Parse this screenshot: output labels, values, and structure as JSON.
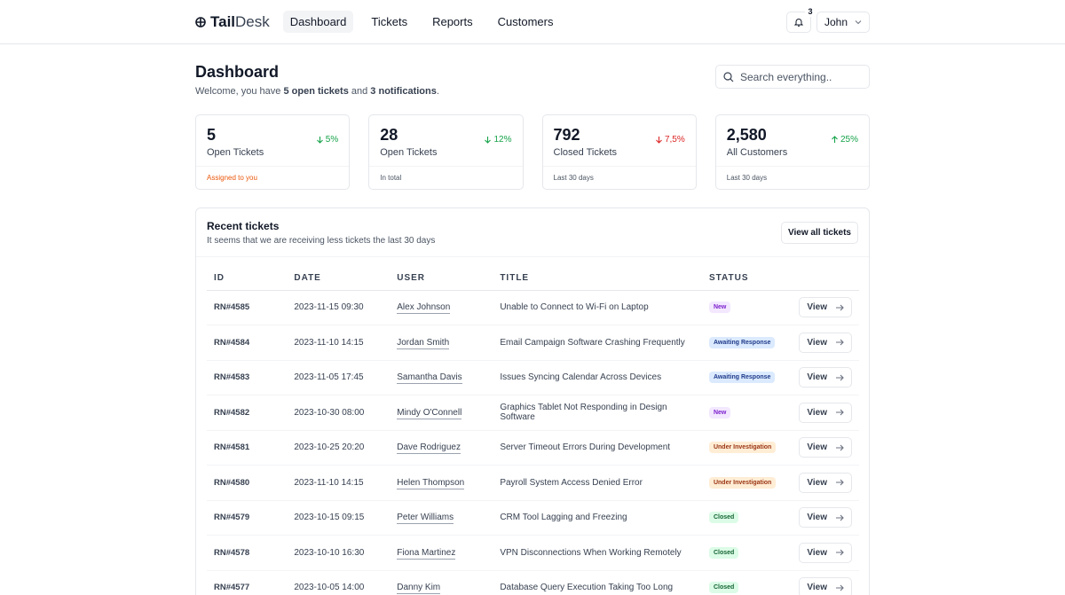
{
  "brand": {
    "part1": "Tail",
    "part2": "Desk"
  },
  "nav": [
    {
      "label": "Dashboard",
      "active": true
    },
    {
      "label": "Tickets"
    },
    {
      "label": "Reports"
    },
    {
      "label": "Customers"
    }
  ],
  "notifications": {
    "count": "3"
  },
  "user": {
    "name": "John"
  },
  "page": {
    "title": "Dashboard",
    "welcome_pre": "Welcome, you have ",
    "open_tickets": "5 open tickets",
    "welcome_mid": " and ",
    "notifications": "3 notifications",
    "welcome_end": "."
  },
  "search": {
    "placeholder": "Search everything.."
  },
  "stats": [
    {
      "value": "5",
      "label": "Open Tickets",
      "trend": "5%",
      "footer": "Assigned to you"
    },
    {
      "value": "28",
      "label": "Open Tickets",
      "trend": "12%",
      "footer": "In total"
    },
    {
      "value": "792",
      "label": "Closed Tickets",
      "trend": "7,5%",
      "footer": "Last 30 days"
    },
    {
      "value": "2,580",
      "label": "All Customers",
      "trend": "25%",
      "footer": "Last 30 days"
    }
  ],
  "recent": {
    "title": "Recent tickets",
    "subtitle": "It seems that we are receiving less tickets the last 30 days",
    "view_all": "View all tickets",
    "columns": [
      "ID",
      "DATE",
      "USER",
      "TITLE",
      "STATUS"
    ],
    "view_label": "View",
    "rows": [
      {
        "id": "RN#4585",
        "date": "2023-11-15 09:30",
        "user": "Alex Johnson",
        "title": "Unable to Connect to Wi-Fi on Laptop",
        "status": "New"
      },
      {
        "id": "RN#4584",
        "date": "2023-11-10 14:15",
        "user": "Jordan Smith",
        "title": "Email Campaign Software Crashing Frequently",
        "status": "Awaiting Response"
      },
      {
        "id": "RN#4583",
        "date": "2023-11-05 17:45",
        "user": "Samantha Davis",
        "title": "Issues Syncing Calendar Across Devices",
        "status": "Awaiting Response"
      },
      {
        "id": "RN#4582",
        "date": "2023-10-30 08:00",
        "user": "Mindy O'Connell",
        "title": "Graphics Tablet Not Responding in Design Software",
        "status": "New"
      },
      {
        "id": "RN#4581",
        "date": "2023-10-25 20:20",
        "user": "Dave Rodriguez",
        "title": "Server Timeout Errors During Development",
        "status": "Under Investigation"
      },
      {
        "id": "RN#4580",
        "date": "2023-11-10 14:15",
        "user": "Helen Thompson",
        "title": "Payroll System Access Denied Error",
        "status": "Under Investigation"
      },
      {
        "id": "RN#4579",
        "date": "2023-10-15 09:15",
        "user": "Peter Williams",
        "title": "CRM Tool Lagging and Freezing",
        "status": "Closed"
      },
      {
        "id": "RN#4578",
        "date": "2023-10-10 16:30",
        "user": "Fiona Martinez",
        "title": "VPN Disconnections When Working Remotely",
        "status": "Closed"
      },
      {
        "id": "RN#4577",
        "date": "2023-10-05 14:00",
        "user": "Danny Kim",
        "title": "Database Query Execution Taking Too Long",
        "status": "Closed"
      }
    ]
  }
}
